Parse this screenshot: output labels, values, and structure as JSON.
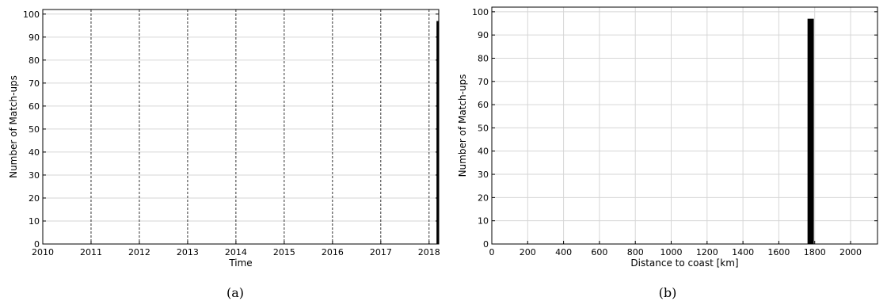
{
  "chart_data": [
    {
      "type": "bar",
      "panel_label": "(a)",
      "title": "",
      "xlabel": "Time",
      "ylabel": "Number of Match-ups",
      "xlim": [
        2010,
        2018.2
      ],
      "ylim": [
        0,
        102
      ],
      "x_ticks": [
        "2010",
        "2011",
        "2012",
        "2013",
        "2014",
        "2015",
        "2016",
        "2017",
        "2018"
      ],
      "y_ticks": [
        "0",
        "10",
        "20",
        "30",
        "40",
        "50",
        "60",
        "70",
        "80",
        "90",
        "100"
      ],
      "grid": "horizontal solid, vertical dashed at year boundaries",
      "bars": [
        {
          "x": 2018.17,
          "value": 97
        }
      ],
      "bar_color": "#000000"
    },
    {
      "type": "bar",
      "panel_label": "(b)",
      "title": "",
      "xlabel": "Distance to coast [km]",
      "ylabel": "Number of Match-ups",
      "xlim": [
        0,
        2150
      ],
      "ylim": [
        0,
        102
      ],
      "x_ticks": [
        "0",
        "200",
        "400",
        "600",
        "800",
        "1000",
        "1200",
        "1400",
        "1600",
        "1800",
        "2000"
      ],
      "y_ticks": [
        "0",
        "10",
        "20",
        "30",
        "40",
        "50",
        "60",
        "70",
        "80",
        "90",
        "100"
      ],
      "grid": "on",
      "bars": [
        {
          "x_start": 1760,
          "x_end": 1795,
          "value": 97
        }
      ],
      "bar_color": "#000000"
    }
  ]
}
